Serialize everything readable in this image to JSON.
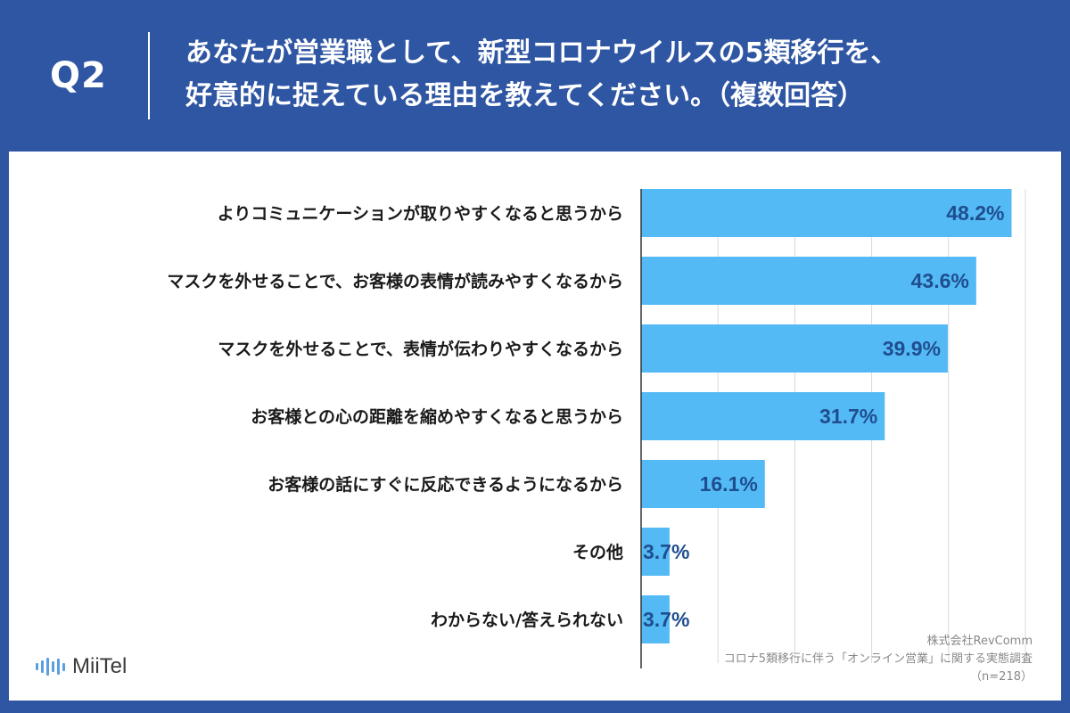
{
  "header": {
    "question_label": "Q2",
    "title_line1": "あなたが営業職として、新型コロナウイルスの5類移行を、",
    "title_line2": "好意的に捉えている理由を教えてください。（複数回答）"
  },
  "chart_data": {
    "type": "bar",
    "orientation": "horizontal",
    "title": "あなたが営業職として、新型コロナウイルスの5類移行を、好意的に捉えている理由を教えてください。（複数回答）",
    "categories": [
      "よりコミュニケーションが取りやすくなると思うから",
      "マスクを外せることで、お客様の表情が読みやすくなるから",
      "マスクを外せることで、表情が伝わりやすくなるから",
      "お客様との心の距離を縮めやすくなると思うから",
      "お客様の話にすぐに反応できるようになるから",
      "その他",
      "わからない/答えられない"
    ],
    "values": [
      48.2,
      43.6,
      39.9,
      31.7,
      16.1,
      3.7,
      3.7
    ],
    "value_labels": [
      "48.2%",
      "43.6%",
      "39.9%",
      "31.7%",
      "16.1%",
      "3.7%",
      "3.7%"
    ],
    "unit": "%",
    "xlim": [
      0,
      50
    ],
    "grid": true,
    "bar_color": "#54baf5",
    "label_color": "#1f4e8f"
  },
  "logo": {
    "name": "MiiTel",
    "icon": "miitel-logo-icon"
  },
  "source": {
    "company": "株式会社RevComm",
    "survey": "コロナ5類移行に伴う「オンライン営業」に関する実態調査",
    "sample": "（n=218）"
  },
  "colors": {
    "background": "#2f56a3",
    "panel": "#ffffff",
    "bar": "#54baf5"
  }
}
